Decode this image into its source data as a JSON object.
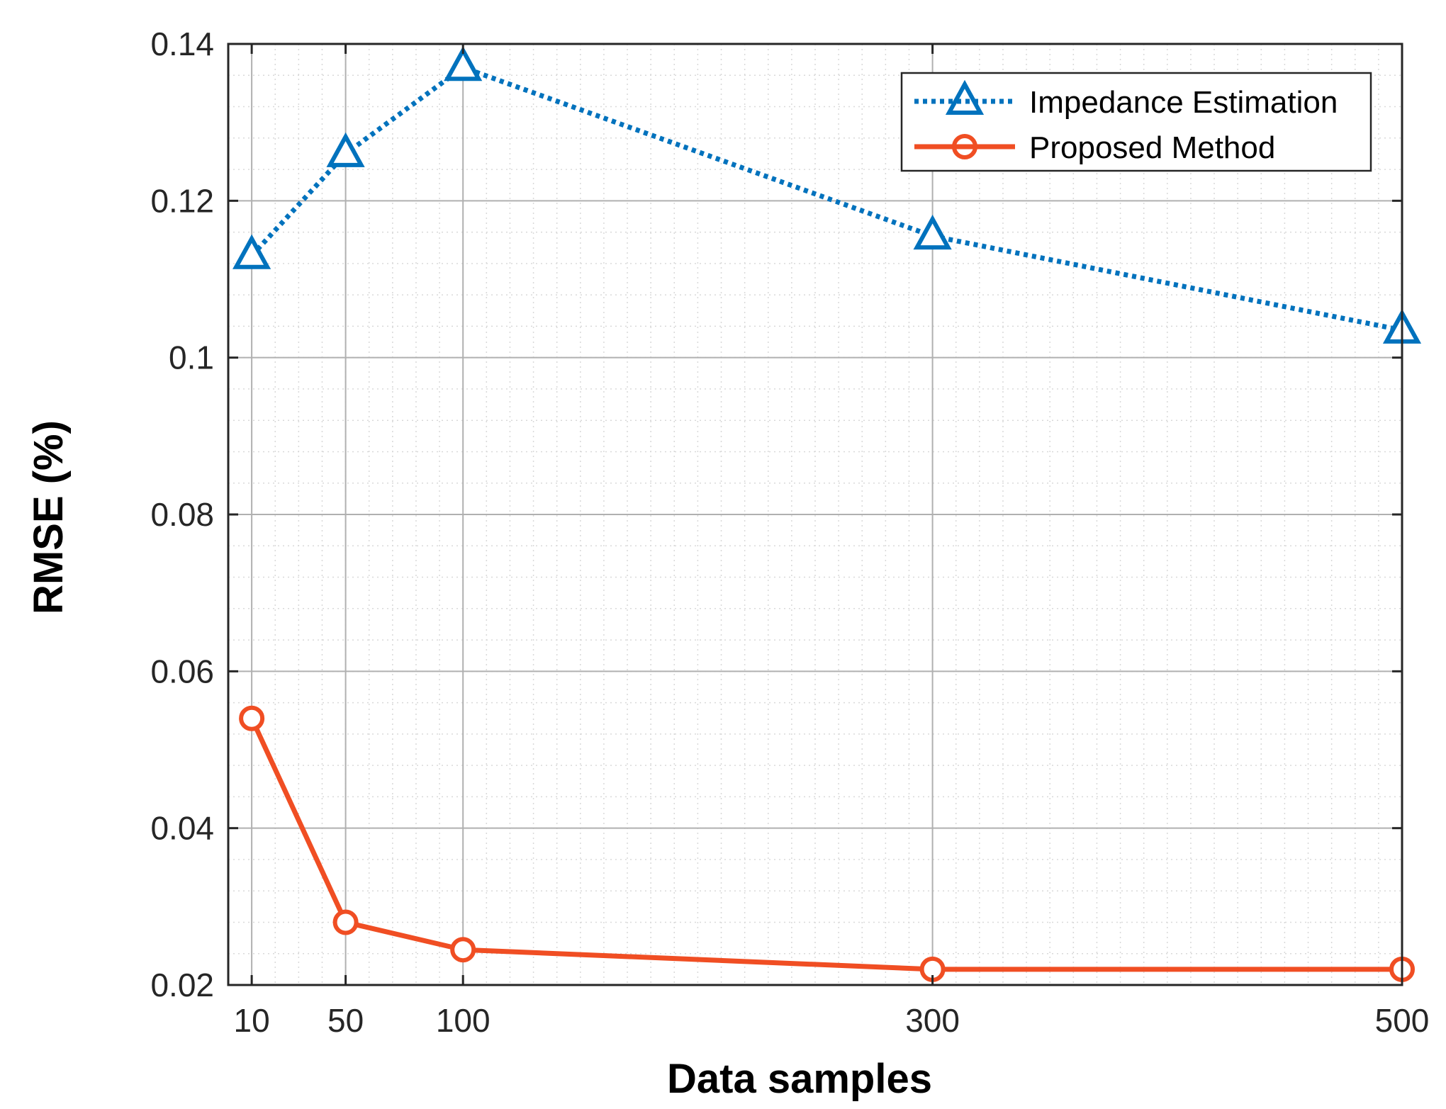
{
  "chart_data": {
    "type": "line",
    "title": "",
    "xlabel": "Data samples",
    "ylabel": "RMSE (%)",
    "xlim": [
      0,
      500
    ],
    "ylim": [
      0.02,
      0.14
    ],
    "x": [
      10,
      50,
      100,
      300,
      500
    ],
    "x_tick_labels": [
      "10",
      "50",
      "100",
      "300",
      "500"
    ],
    "y_ticks": [
      0.02,
      0.04,
      0.06,
      0.08,
      0.1,
      0.12,
      0.14
    ],
    "y_tick_labels": [
      "0.02",
      "0.04",
      "0.06",
      "0.08",
      "0.1",
      "0.12",
      "0.14"
    ],
    "grid": true,
    "minor_grid": true,
    "legend_position": "top-right",
    "series": [
      {
        "name": "Impedance Estimation",
        "values": [
          0.113,
          0.126,
          0.137,
          0.1155,
          0.1035
        ],
        "color": "#0072BD",
        "line_style": "dotted",
        "marker": "triangle"
      },
      {
        "name": "Proposed Method",
        "values": [
          0.054,
          0.028,
          0.0245,
          0.022,
          0.022
        ],
        "color": "#F04E23",
        "line_style": "solid",
        "marker": "circle"
      }
    ]
  }
}
